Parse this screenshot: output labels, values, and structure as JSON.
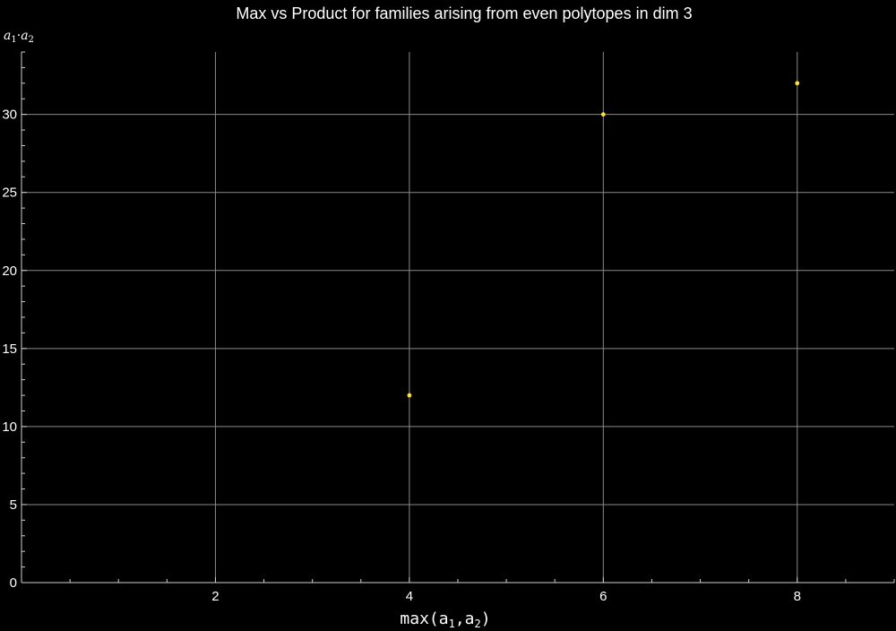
{
  "chart_data": {
    "type": "scatter",
    "title": "Max vs Product for families arising from even polytopes in dim 3",
    "xlabel": "max(a1,a2)",
    "ylabel": "a1·a2",
    "xlim": [
      0,
      9
    ],
    "ylim": [
      0,
      34
    ],
    "x_ticks": [
      2,
      4,
      6,
      8
    ],
    "x_tick_labels": [
      "2",
      "4",
      "6",
      "8"
    ],
    "y_ticks": [
      0,
      5,
      10,
      15,
      20,
      25,
      30
    ],
    "y_tick_labels": [
      "0",
      "5",
      "10",
      "15",
      "20",
      "25",
      "30"
    ],
    "grid": true,
    "background": "#000000",
    "point_color": "#ffe135",
    "series": [
      {
        "points": [
          {
            "x": 4,
            "y": 12
          },
          {
            "x": 6,
            "y": 30
          },
          {
            "x": 8,
            "y": 32
          }
        ]
      }
    ]
  }
}
